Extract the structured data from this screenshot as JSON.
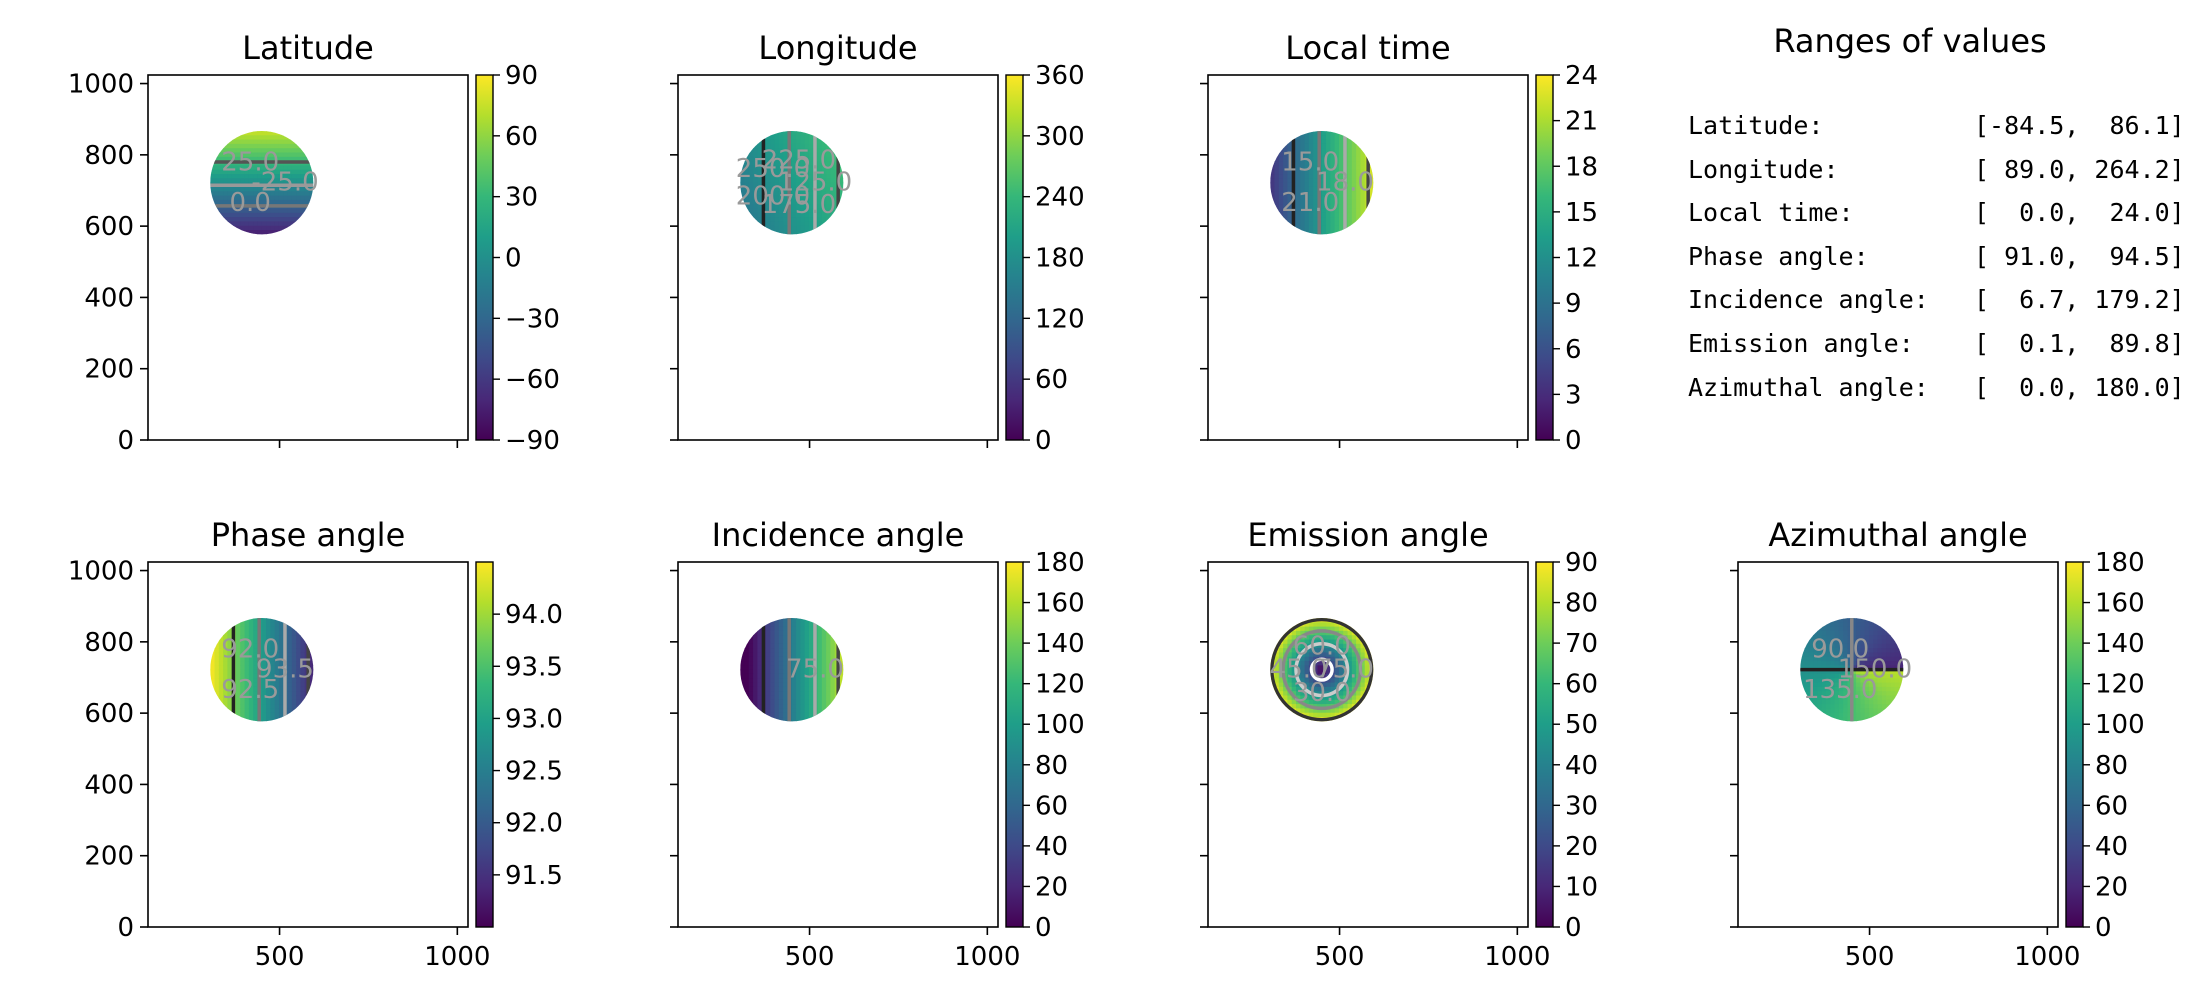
{
  "chart_data": [
    {
      "type": "heatmap",
      "title": "Latitude",
      "xlim": [
        130,
        1030
      ],
      "ylim": [
        0,
        1024
      ],
      "xticks": [
        500,
        1000
      ],
      "yticks": [
        0,
        200,
        400,
        600,
        800,
        1000
      ],
      "show_xticklabels": false,
      "show_yticklabels": true,
      "disk": {
        "center": [
          450,
          722
        ],
        "radius": 145
      },
      "colorbar": {
        "min": -90,
        "max": 90,
        "ticks": [
          -90,
          -60,
          -30,
          0,
          30,
          60,
          90
        ],
        "tick_labels": [
          "−90",
          "−60",
          "−30",
          "0",
          "30",
          "60",
          "90"
        ]
      },
      "contour_labels": [
        "-25.0",
        "0.0",
        "25.0"
      ]
    },
    {
      "type": "heatmap",
      "title": "Longitude",
      "xlim": [
        130,
        1030
      ],
      "ylim": [
        0,
        1024
      ],
      "xticks": [
        500,
        1000
      ],
      "yticks": [
        0,
        200,
        400,
        600,
        800,
        1000
      ],
      "show_xticklabels": false,
      "show_yticklabels": false,
      "disk": {
        "center": [
          450,
          722
        ],
        "radius": 145
      },
      "colorbar": {
        "min": 0,
        "max": 360,
        "ticks": [
          0,
          60,
          120,
          180,
          240,
          300,
          360
        ],
        "tick_labels": [
          "0",
          "60",
          "120",
          "180",
          "240",
          "300",
          "360"
        ]
      },
      "contour_labels": [
        "125.0",
        "175.0",
        "200.0",
        "250.0",
        "225.0"
      ]
    },
    {
      "type": "heatmap",
      "title": "Local time",
      "xlim": [
        130,
        1030
      ],
      "ylim": [
        0,
        1024
      ],
      "xticks": [
        500,
        1000
      ],
      "yticks": [
        0,
        200,
        400,
        600,
        800,
        1000
      ],
      "show_xticklabels": false,
      "show_yticklabels": false,
      "disk": {
        "center": [
          450,
          722
        ],
        "radius": 145
      },
      "colorbar": {
        "min": 0,
        "max": 24,
        "ticks": [
          0,
          3,
          6,
          9,
          12,
          15,
          18,
          21,
          24
        ],
        "tick_labels": [
          "0",
          "3",
          "6",
          "9",
          "12",
          "15",
          "18",
          "21",
          "24"
        ]
      },
      "contour_labels": [
        "18.0",
        "21.0",
        "15.0"
      ]
    },
    {
      "type": "heatmap",
      "title": "Phase angle",
      "xlim": [
        130,
        1030
      ],
      "ylim": [
        0,
        1024
      ],
      "xticks": [
        500,
        1000
      ],
      "yticks": [
        0,
        200,
        400,
        600,
        800,
        1000
      ],
      "show_xticklabels": true,
      "show_yticklabels": true,
      "disk": {
        "center": [
          450,
          722
        ],
        "radius": 145
      },
      "colorbar": {
        "min": 91.0,
        "max": 94.5,
        "ticks": [
          91.5,
          92.0,
          92.5,
          93.0,
          93.5,
          94.0
        ],
        "tick_labels": [
          "91.5",
          "92.0",
          "92.5",
          "93.0",
          "93.5",
          "94.0"
        ]
      },
      "contour_labels": [
        "93.5",
        "92.5",
        "92.0"
      ]
    },
    {
      "type": "heatmap",
      "title": "Incidence angle",
      "xlim": [
        130,
        1030
      ],
      "ylim": [
        0,
        1024
      ],
      "xticks": [
        500,
        1000
      ],
      "yticks": [
        0,
        200,
        400,
        600,
        800,
        1000
      ],
      "show_xticklabels": true,
      "show_yticklabels": false,
      "disk": {
        "center": [
          450,
          722
        ],
        "radius": 145
      },
      "colorbar": {
        "min": 0,
        "max": 180,
        "ticks": [
          0,
          20,
          40,
          60,
          80,
          100,
          120,
          140,
          160,
          180
        ],
        "tick_labels": [
          "0",
          "20",
          "40",
          "60",
          "80",
          "100",
          "120",
          "140",
          "160",
          "180"
        ]
      },
      "contour_labels": [
        "75.0"
      ]
    },
    {
      "type": "heatmap",
      "title": "Emission angle",
      "xlim": [
        130,
        1030
      ],
      "ylim": [
        0,
        1024
      ],
      "xticks": [
        500,
        1000
      ],
      "yticks": [
        0,
        200,
        400,
        600,
        800,
        1000
      ],
      "show_xticklabels": true,
      "show_yticklabels": false,
      "disk": {
        "center": [
          450,
          722
        ],
        "radius": 145
      },
      "colorbar": {
        "min": 0,
        "max": 90,
        "ticks": [
          0,
          10,
          20,
          30,
          40,
          50,
          60,
          70,
          80,
          90
        ],
        "tick_labels": [
          "0",
          "10",
          "20",
          "30",
          "40",
          "50",
          "60",
          "70",
          "80",
          "90"
        ]
      },
      "contour_labels": [
        "75.0",
        "30.0",
        "45.0",
        "60.0"
      ]
    },
    {
      "type": "heatmap",
      "title": "Azimuthal angle",
      "xlim": [
        130,
        1030
      ],
      "ylim": [
        0,
        1024
      ],
      "xticks": [
        500,
        1000
      ],
      "yticks": [
        0,
        200,
        400,
        600,
        800,
        1000
      ],
      "show_xticklabels": true,
      "show_yticklabels": false,
      "disk": {
        "center": [
          450,
          722
        ],
        "radius": 145
      },
      "colorbar": {
        "min": 0,
        "max": 180,
        "ticks": [
          0,
          20,
          40,
          60,
          80,
          100,
          120,
          140,
          160,
          180
        ],
        "tick_labels": [
          "0",
          "20",
          "40",
          "60",
          "80",
          "100",
          "120",
          "140",
          "160",
          "180"
        ]
      },
      "contour_labels": [
        "150.0",
        "135.0",
        "90.0"
      ]
    }
  ],
  "ranges": {
    "title": "Ranges of values",
    "rows": [
      {
        "label": "Latitude:",
        "range": "[-84.5,  86.1]"
      },
      {
        "label": "Longitude:",
        "range": "[ 89.0, 264.2]"
      },
      {
        "label": "Local time:",
        "range": "[  0.0,  24.0]"
      },
      {
        "label": "Phase angle:",
        "range": "[ 91.0,  94.5]"
      },
      {
        "label": "Incidence angle:",
        "range": "[  6.7, 179.2]"
      },
      {
        "label": "Emission angle:",
        "range": "[  0.1,  89.8]"
      },
      {
        "label": "Azimuthal angle:",
        "range": "[  0.0, 180.0]"
      }
    ]
  }
}
